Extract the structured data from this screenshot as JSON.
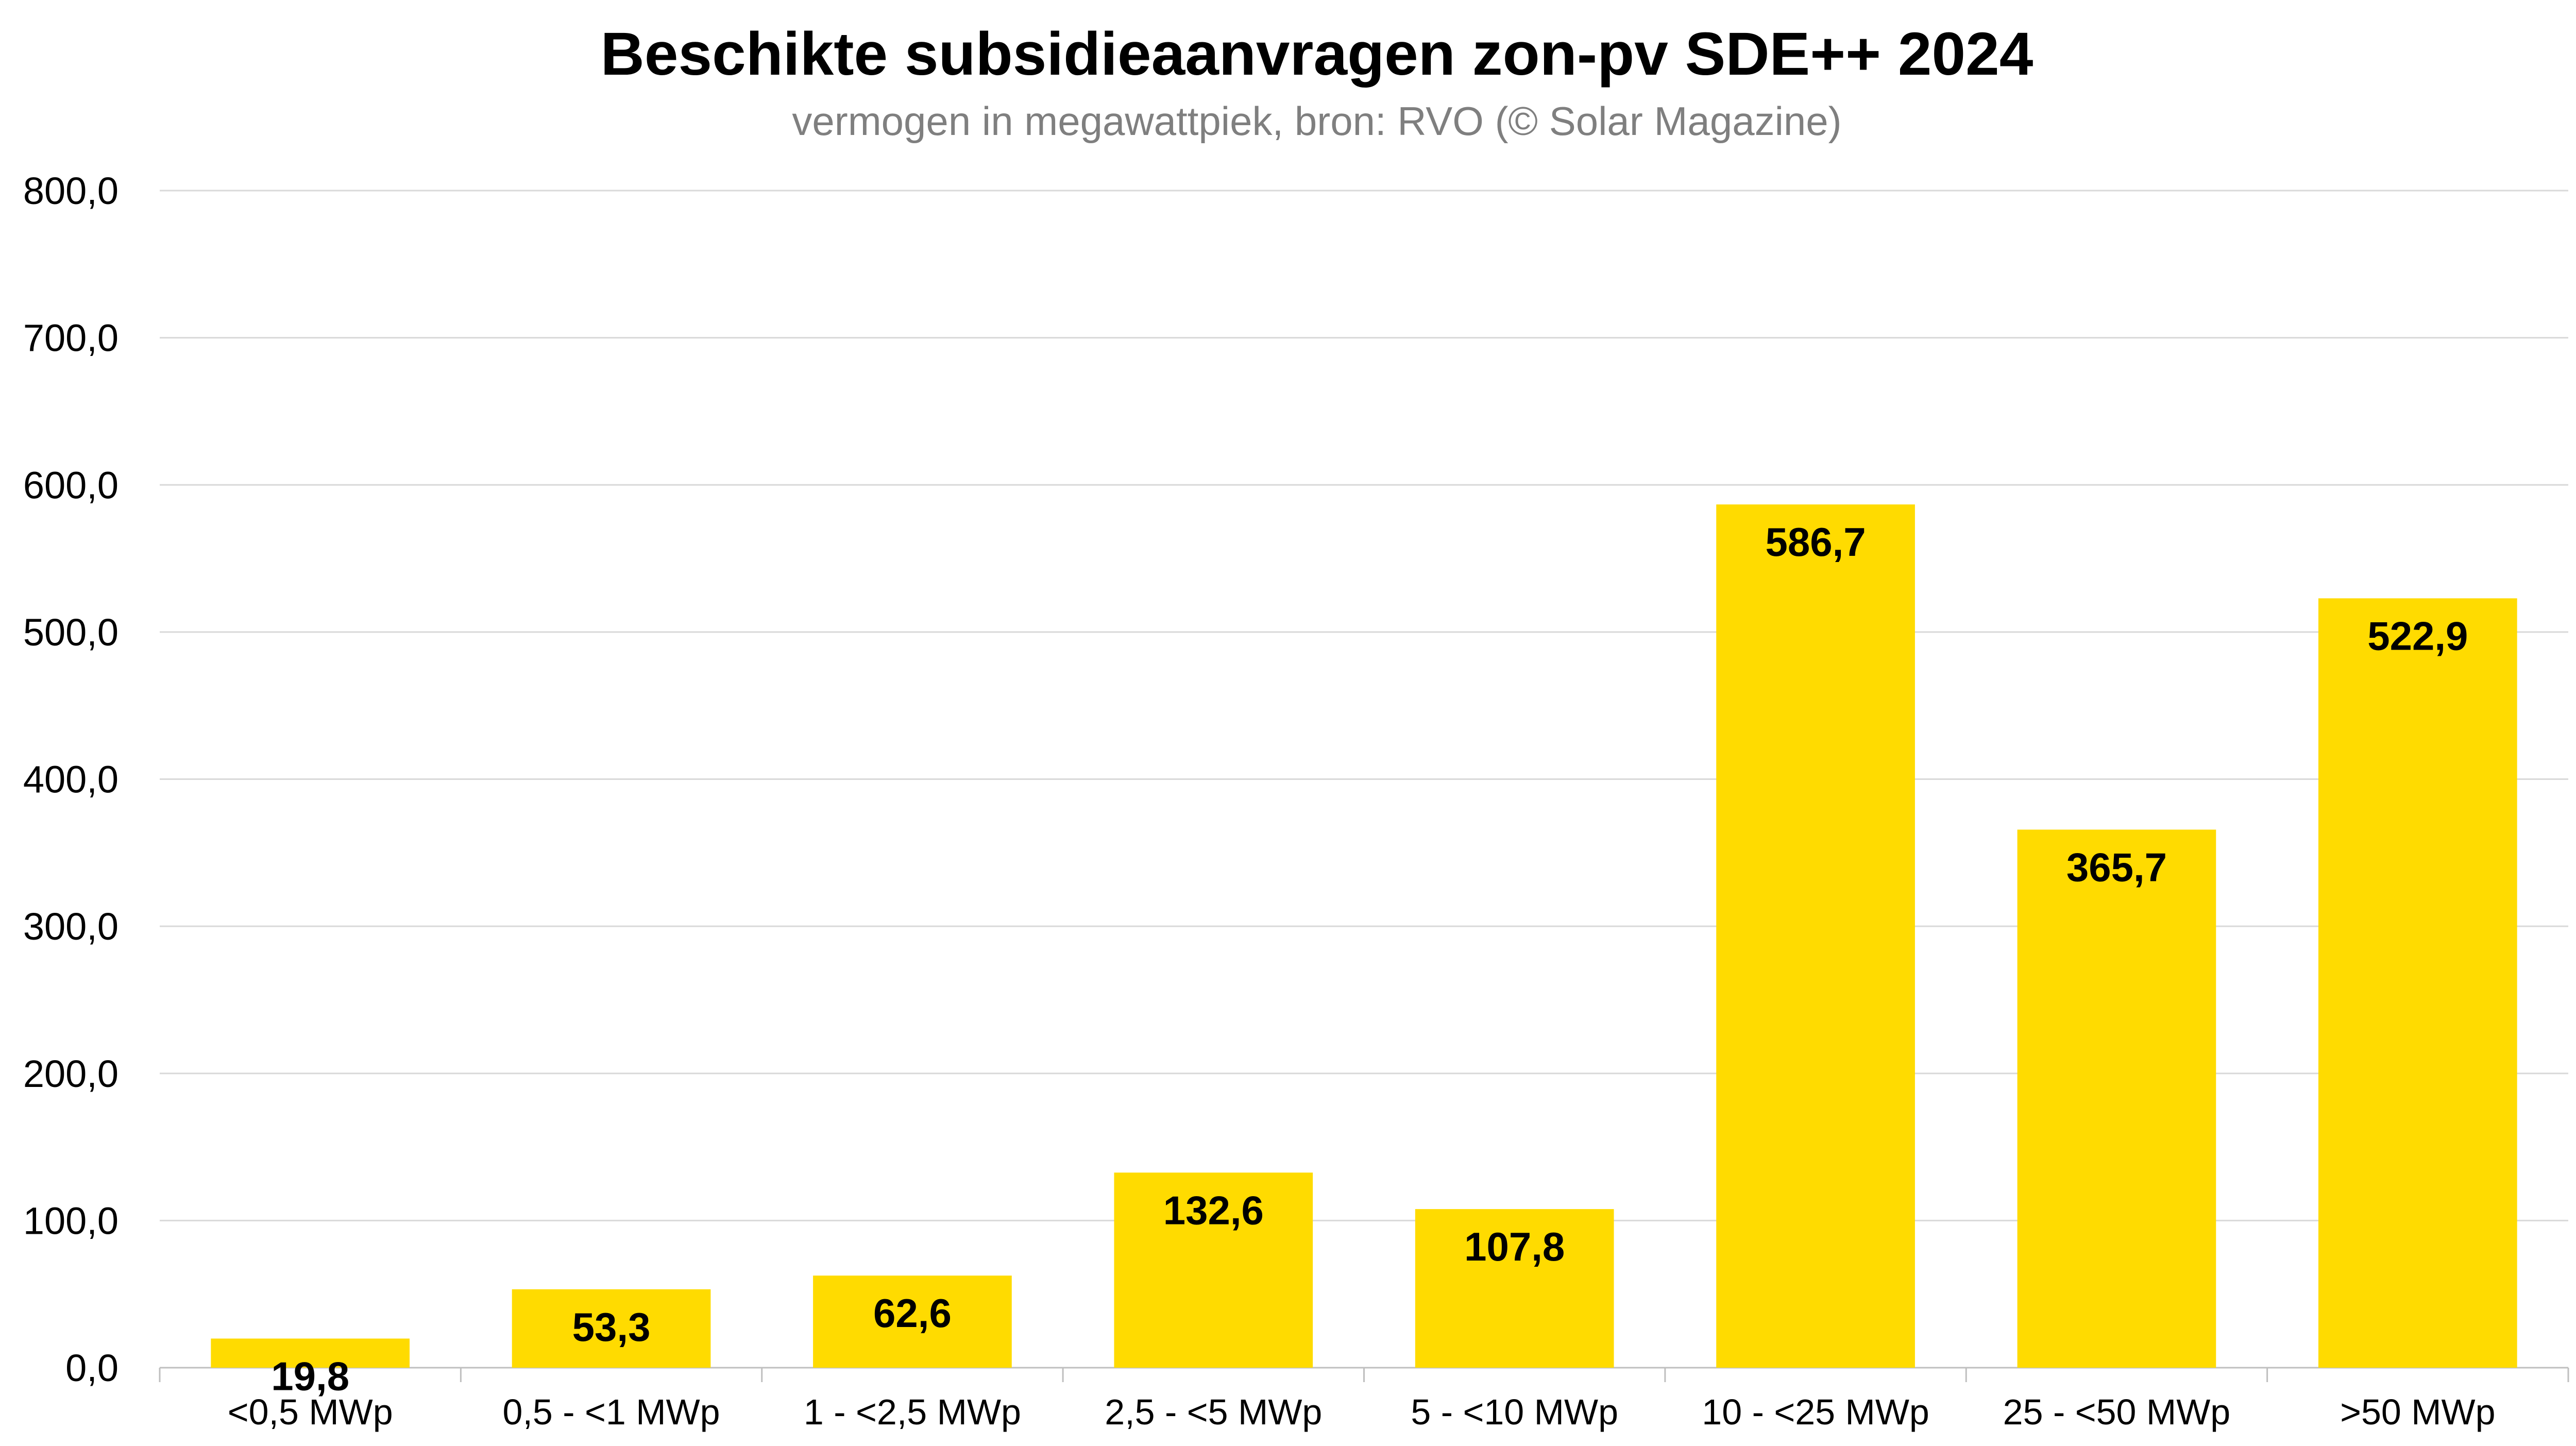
{
  "chart_data": {
    "type": "bar",
    "title": "Beschikte subsidieaanvragen zon-pv SDE++ 2024",
    "subtitle": "vermogen in megawattpiek, bron: RVO (© Solar Magazine)",
    "xlabel": "",
    "ylabel": "",
    "categories": [
      "<0,5 MWp",
      "0,5 - <1 MWp",
      "1 - <2,5 MWp",
      "2,5 - <5 MWp",
      "5 - <10 MWp",
      "10 - <25 MWp",
      "25 - <50 MWp",
      ">50 MWp"
    ],
    "values": [
      19.8,
      53.3,
      62.6,
      132.6,
      107.8,
      586.7,
      365.7,
      522.9
    ],
    "value_labels": [
      "19,8",
      "53,3",
      "62,6",
      "132,6",
      "107,8",
      "586,7",
      "365,7",
      "522,9"
    ],
    "ylim": [
      0,
      800
    ],
    "yticks": [
      0,
      100,
      200,
      300,
      400,
      500,
      600,
      700,
      800
    ],
    "ytick_labels": [
      "0,0",
      "100,0",
      "200,0",
      "300,0",
      "400,0",
      "500,0",
      "600,0",
      "700,0",
      "800,0"
    ],
    "grid": true,
    "legend": "none",
    "colors": {
      "bar": "#FFDB00",
      "grid": "#d9d9d9",
      "text": "#000000",
      "subtitle": "#7f7f7f"
    }
  }
}
